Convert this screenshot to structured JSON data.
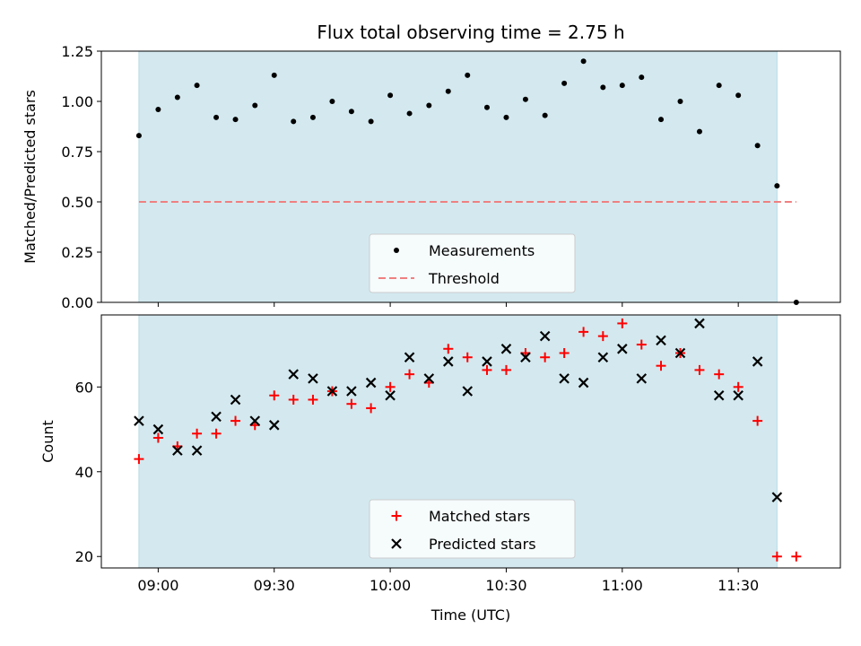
{
  "chart_data": {
    "title": "Flux total observing time = 2.75 h",
    "xlabel": "Time (UTC)",
    "x_ticks": [
      "09:00",
      "09:30",
      "10:00",
      "10:30",
      "11:00",
      "11:30"
    ],
    "x_tick_hours": [
      9.0,
      9.5,
      10.0,
      10.5,
      11.0,
      11.5
    ],
    "xlim_hours": [
      8.755,
      11.94
    ],
    "shaded_interval_hours": [
      8.917,
      11.667
    ],
    "shade_color": "#d3e9ef",
    "panels": [
      {
        "type": "scatter",
        "ylabel": "Matched/Predicted stars",
        "ylim": [
          0,
          1.25
        ],
        "y_ticks": [
          "0.00",
          "0.25",
          "0.50",
          "0.75",
          "1.00",
          "1.25"
        ],
        "y_tick_values": [
          0,
          0.25,
          0.5,
          0.75,
          1.0,
          1.25
        ],
        "legend": {
          "location": "lower center",
          "entries": [
            "Measurements",
            "Threshold"
          ]
        },
        "series": [
          {
            "name": "Measurements",
            "marker": "dot",
            "color": "#000000",
            "x_hours": [
              8.917,
              9.0,
              9.083,
              9.167,
              9.25,
              9.333,
              9.417,
              9.5,
              9.583,
              9.667,
              9.75,
              9.833,
              9.917,
              10.0,
              10.083,
              10.167,
              10.25,
              10.333,
              10.417,
              10.5,
              10.583,
              10.667,
              10.75,
              10.833,
              10.917,
              11.0,
              11.083,
              11.167,
              11.25,
              11.333,
              11.417,
              11.5,
              11.583,
              11.667,
              11.75
            ],
            "y": [
              0.83,
              0.96,
              1.02,
              1.08,
              0.92,
              0.91,
              0.98,
              1.13,
              0.9,
              0.92,
              1.0,
              0.95,
              0.9,
              1.03,
              0.94,
              0.98,
              1.05,
              1.13,
              0.97,
              0.92,
              1.01,
              0.93,
              1.09,
              1.2,
              1.07,
              1.08,
              1.12,
              0.91,
              1.0,
              0.85,
              1.08,
              1.03,
              0.78,
              0.58,
              0.0
            ]
          },
          {
            "name": "Threshold",
            "style": "dashed",
            "color": "#f08080",
            "x_hours": [
              8.917,
              11.75
            ],
            "y": [
              0.5,
              0.5
            ]
          }
        ]
      },
      {
        "type": "scatter",
        "ylabel": "Count",
        "ylim": [
          17.3,
          77.0
        ],
        "y_ticks": [
          "20",
          "40",
          "60"
        ],
        "y_tick_values": [
          20,
          40,
          60
        ],
        "legend": {
          "location": "lower center",
          "entries": [
            "Matched stars",
            "Predicted stars"
          ]
        },
        "series": [
          {
            "name": "Matched stars",
            "marker": "plus",
            "color": "#ff0000",
            "x_hours": [
              8.917,
              9.0,
              9.083,
              9.167,
              9.25,
              9.333,
              9.417,
              9.5,
              9.583,
              9.667,
              9.75,
              9.833,
              9.917,
              10.0,
              10.083,
              10.167,
              10.25,
              10.333,
              10.417,
              10.5,
              10.583,
              10.667,
              10.75,
              10.833,
              10.917,
              11.0,
              11.083,
              11.167,
              11.25,
              11.333,
              11.417,
              11.5,
              11.583,
              11.667,
              11.75
            ],
            "y": [
              43,
              48,
              46,
              49,
              49,
              52,
              51,
              58,
              57,
              57,
              59,
              56,
              55,
              60,
              63,
              61,
              69,
              67,
              64,
              64,
              68,
              67,
              68,
              73,
              72,
              75,
              70,
              65,
              68,
              64,
              63,
              60,
              52,
              20,
              20
            ]
          },
          {
            "name": "Predicted stars",
            "marker": "x",
            "color": "#000000",
            "x_hours": [
              8.917,
              9.0,
              9.083,
              9.167,
              9.25,
              9.333,
              9.417,
              9.5,
              9.583,
              9.667,
              9.75,
              9.833,
              9.917,
              10.0,
              10.083,
              10.167,
              10.25,
              10.333,
              10.417,
              10.5,
              10.583,
              10.667,
              10.75,
              10.833,
              10.917,
              11.0,
              11.083,
              11.167,
              11.25,
              11.333,
              11.417,
              11.5,
              11.583,
              11.667
            ],
            "y": [
              52,
              50,
              45,
              45,
              53,
              57,
              52,
              51,
              63,
              62,
              59,
              59,
              61,
              58,
              67,
              62,
              66,
              59,
              66,
              69,
              67,
              72,
              62,
              61,
              67,
              69,
              62,
              71,
              68,
              75,
              58,
              58,
              66,
              34
            ]
          }
        ]
      }
    ]
  }
}
